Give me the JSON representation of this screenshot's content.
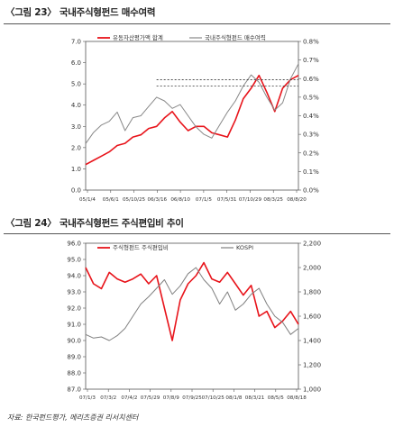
{
  "chart_data": [
    {
      "type": "line",
      "figure_label": "〈그림 23〉",
      "title": "국내주식형펀드 매수여력",
      "y_left": {
        "min": 0.0,
        "max": 7.0,
        "ticks": [
          "0.0",
          "1.0",
          "2.0",
          "3.0",
          "4.0",
          "5.0",
          "6.0",
          "7.0"
        ]
      },
      "y_right": {
        "min": 0.0,
        "max": 0.8,
        "ticks": [
          "0.0%",
          "0.1%",
          "0.2%",
          "0.3%",
          "0.4%",
          "0.5%",
          "0.6%",
          "0.7%",
          "0.8%"
        ]
      },
      "x_ticks": [
        "05/1/4",
        "05/6/1",
        "05/10/25",
        "06/3/16",
        "06/8/10",
        "07/1/5",
        "07/5/31",
        "07/10/29",
        "08/3/25",
        "08/8/20"
      ],
      "series": [
        {
          "name": "유동자산평가액 합계",
          "axis": "left",
          "color": "#e8141b",
          "values": [
            1.2,
            1.4,
            1.6,
            1.8,
            2.1,
            2.2,
            2.5,
            2.6,
            2.9,
            3.0,
            3.4,
            3.7,
            3.2,
            2.8,
            3.0,
            3.0,
            2.7,
            2.6,
            2.5,
            3.3,
            4.3,
            4.8,
            5.4,
            4.6,
            3.7,
            4.8,
            5.2,
            5.4
          ]
        },
        {
          "name": "국내주식형펀드 매수여력",
          "axis": "right",
          "color": "#888888",
          "values": [
            0.25,
            0.31,
            0.35,
            0.37,
            0.42,
            0.32,
            0.39,
            0.4,
            0.45,
            0.5,
            0.48,
            0.44,
            0.46,
            0.4,
            0.34,
            0.3,
            0.28,
            0.35,
            0.42,
            0.48,
            0.56,
            0.62,
            0.58,
            0.5,
            0.43,
            0.47,
            0.6,
            0.68
          ]
        }
      ],
      "reference_lines": [
        {
          "axis": "left",
          "value": 5.2,
          "from_index": 9,
          "to_index": 27
        },
        {
          "axis": "left",
          "value": 4.9,
          "from_index": 9,
          "to_index": 27
        }
      ]
    },
    {
      "type": "line",
      "figure_label": "〈그림 24〉",
      "title": "국내주식형펀드 주식편입비 추이",
      "y_left": {
        "min": 87.0,
        "max": 96.0,
        "ticks": [
          "87.0",
          "88.0",
          "89.0",
          "90.0",
          "91.0",
          "92.0",
          "93.0",
          "94.0",
          "95.0",
          "96.0"
        ]
      },
      "y_right": {
        "min": 1000,
        "max": 2200,
        "ticks": [
          "1,000",
          "1,200",
          "1,400",
          "1,600",
          "1,800",
          "2,000",
          "2,200"
        ]
      },
      "x_ticks": [
        "07/1/3",
        "07/3/2",
        "07/4/2",
        "07/5/29",
        "07/8/9",
        "07/9/25",
        "07/10/25",
        "08/1/8",
        "08/3/21",
        "08/5/5",
        "08/8/18"
      ],
      "series": [
        {
          "name": "주식형펀드 주식편입비",
          "axis": "left",
          "color": "#e8141b",
          "values": [
            94.5,
            93.5,
            93.2,
            94.2,
            93.8,
            93.6,
            93.8,
            94.1,
            93.5,
            94.0,
            92.0,
            90.0,
            92.5,
            93.5,
            94.0,
            94.8,
            93.8,
            93.6,
            94.2,
            93.5,
            92.8,
            93.4,
            91.5,
            91.8,
            90.8,
            91.2,
            91.8,
            91.0
          ]
        },
        {
          "name": "KOSPI",
          "axis": "right",
          "color": "#808080",
          "values": [
            1450,
            1420,
            1430,
            1400,
            1440,
            1500,
            1600,
            1700,
            1760,
            1830,
            1900,
            1780,
            1850,
            1950,
            2000,
            1900,
            1830,
            1700,
            1800,
            1650,
            1700,
            1780,
            1830,
            1700,
            1600,
            1550,
            1450,
            1500
          ]
        }
      ]
    }
  ],
  "source_note": "자료: 한국펀드평가, 메리츠증권 리서치센터"
}
